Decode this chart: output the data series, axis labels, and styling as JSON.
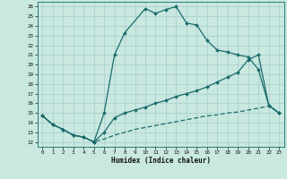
{
  "xlabel": "Humidex (Indice chaleur)",
  "xlim": [
    -0.5,
    23.5
  ],
  "ylim": [
    11.5,
    26.5
  ],
  "xticks": [
    0,
    1,
    2,
    3,
    4,
    5,
    6,
    7,
    8,
    9,
    10,
    11,
    12,
    13,
    14,
    15,
    16,
    17,
    18,
    19,
    20,
    21,
    22,
    23
  ],
  "yticks": [
    12,
    13,
    14,
    15,
    16,
    17,
    18,
    19,
    20,
    21,
    22,
    23,
    24,
    25,
    26
  ],
  "bg_color": "#c8e8e0",
  "grid_color": "#a8cccc",
  "line_color": "#1a6b6b",
  "line1_x": [
    0,
    1,
    2,
    3,
    4,
    5,
    6,
    7,
    8,
    10,
    11,
    12,
    13,
    14,
    15,
    16,
    17,
    18,
    19,
    20,
    21,
    22,
    23
  ],
  "line1_y": [
    14.7,
    13.8,
    13.3,
    12.7,
    12.5,
    12.0,
    15.0,
    21.0,
    23.3,
    25.8,
    25.3,
    25.7,
    26.0,
    24.3,
    24.1,
    22.5,
    21.5,
    21.3,
    21.0,
    20.8,
    19.5,
    15.8,
    15.0
  ],
  "line2_x": [
    0,
    1,
    2,
    3,
    4,
    5,
    6,
    7,
    8,
    9,
    10,
    11,
    12,
    13,
    14,
    15,
    16,
    17,
    18,
    19,
    20,
    21,
    22,
    23
  ],
  "line2_y": [
    14.7,
    13.8,
    13.3,
    12.7,
    12.5,
    12.0,
    13.0,
    14.5,
    15.0,
    15.3,
    15.6,
    16.0,
    16.3,
    16.7,
    17.0,
    17.3,
    17.7,
    18.2,
    18.7,
    19.2,
    20.5,
    21.0,
    15.8,
    15.0
  ],
  "line3_x": [
    0,
    1,
    2,
    3,
    4,
    5,
    6,
    7,
    8,
    9,
    10,
    11,
    12,
    13,
    14,
    15,
    16,
    17,
    18,
    19,
    20,
    21,
    22,
    23
  ],
  "line3_y": [
    14.7,
    13.8,
    13.3,
    12.7,
    12.5,
    12.0,
    12.3,
    12.7,
    13.0,
    13.3,
    13.5,
    13.7,
    13.9,
    14.1,
    14.3,
    14.5,
    14.7,
    14.8,
    15.0,
    15.1,
    15.3,
    15.5,
    15.7,
    15.0
  ]
}
